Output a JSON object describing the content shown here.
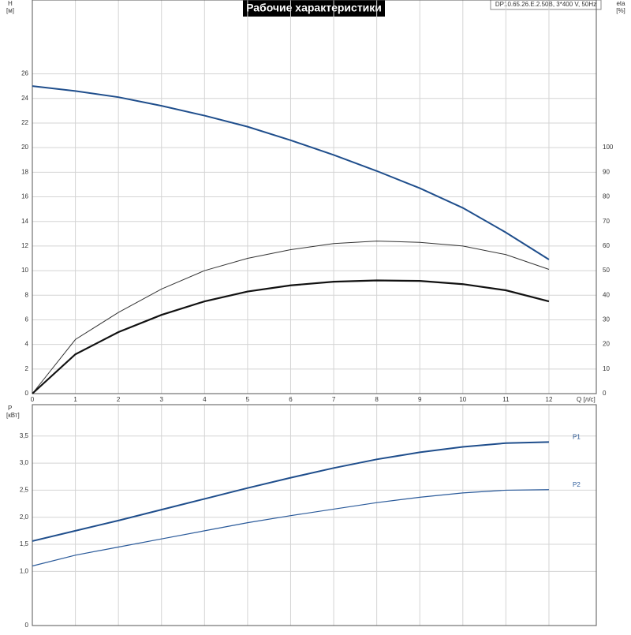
{
  "chart_data": [
    {
      "type": "line",
      "title": "Рабочие характеристики",
      "model": "DP10.65.26.E.2.50B, 3*400 V, 50Hz",
      "ylabel": "H",
      "yunit": "[м]",
      "y2label": "eta",
      "y2unit": "[%]",
      "xlabel": "Q [л/с]",
      "x": [
        0,
        1,
        2,
        3,
        4,
        5,
        6,
        7,
        8,
        9,
        10,
        11,
        12
      ],
      "xlim": [
        0,
        13.1
      ],
      "xticks": [
        0,
        1,
        2,
        3,
        4,
        5,
        6,
        7,
        8,
        9,
        10,
        11,
        12
      ],
      "ylim": [
        0,
        32
      ],
      "yticks": [
        0,
        2,
        4,
        6,
        8,
        10,
        12,
        14,
        16,
        18,
        20,
        22,
        24,
        26
      ],
      "y2lim": [
        0,
        160
      ],
      "y2ticks": [
        0,
        10,
        20,
        30,
        40,
        50,
        60,
        70,
        80,
        90,
        100
      ],
      "grid": true,
      "series": [
        {
          "color": "#1f4e8c",
          "width": 2,
          "values": [
            25.0,
            24.6,
            24.1,
            23.4,
            22.6,
            21.7,
            20.6,
            19.4,
            18.1,
            16.7,
            15.1,
            13.1,
            10.9
          ]
        },
        {
          "color": "#333333",
          "width": 1,
          "axis": "y2",
          "values": [
            0,
            22,
            33,
            42.5,
            50,
            55,
            58.5,
            61,
            62,
            61.5,
            60,
            56.5,
            50.5
          ]
        },
        {
          "color": "#111111",
          "width": 2.2,
          "axis": "y2",
          "values": [
            0,
            16,
            25,
            32,
            37.5,
            41.5,
            44,
            45.5,
            46,
            45.8,
            44.5,
            42,
            37.5
          ]
        }
      ]
    },
    {
      "type": "line",
      "ylabel": "P",
      "yunit": "[кВт]",
      "x": [
        0,
        1,
        2,
        3,
        4,
        5,
        6,
        7,
        8,
        9,
        10,
        11,
        12
      ],
      "xlim": [
        0,
        13.1
      ],
      "ylim": [
        0,
        4.08
      ],
      "yticks": [
        0,
        {
          "value": 1,
          "label": "1,0"
        },
        {
          "value": 1.5,
          "label": "1,5"
        },
        {
          "value": 2,
          "label": "2,0"
        },
        {
          "value": 2.5,
          "label": "2,5"
        },
        {
          "value": 3,
          "label": "3,0"
        },
        {
          "value": 3.5,
          "label": "3,5"
        }
      ],
      "grid": true,
      "series": [
        {
          "name": "P1",
          "color": "#1f4e8c",
          "width": 2,
          "values": [
            1.56,
            1.75,
            1.94,
            2.14,
            2.34,
            2.54,
            2.73,
            2.91,
            3.07,
            3.2,
            3.3,
            3.37,
            3.39
          ]
        },
        {
          "name": "P2",
          "color": "#2a5a9a",
          "width": 1.2,
          "values": [
            1.1,
            1.3,
            1.45,
            1.6,
            1.75,
            1.9,
            2.03,
            2.15,
            2.27,
            2.37,
            2.45,
            2.5,
            2.51
          ]
        }
      ]
    }
  ]
}
